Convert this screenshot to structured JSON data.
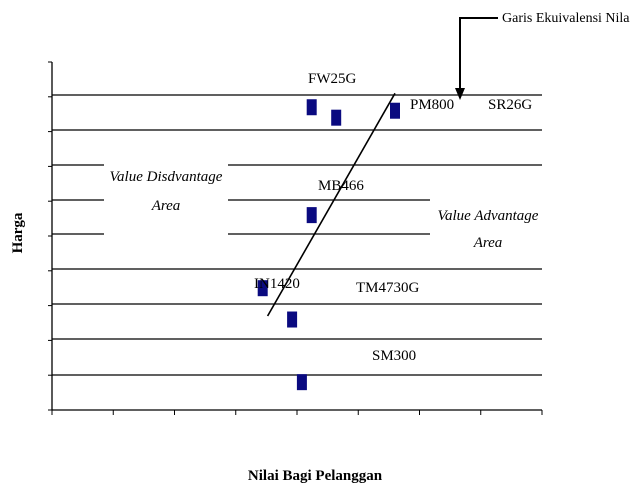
{
  "chart_data": {
    "type": "scatter",
    "title": "",
    "xlabel": "Nilai Bagi Pelanggan",
    "ylabel": "Harga",
    "xlim": [
      0,
      10
    ],
    "ylim": [
      0,
      10
    ],
    "points": [
      {
        "label": "FW25G",
        "x": 5.3,
        "y": 8.7
      },
      {
        "label": "PM800",
        "x": 5.8,
        "y": 8.4
      },
      {
        "label": "SR26G",
        "x": 7.0,
        "y": 8.6
      },
      {
        "label": "MB466",
        "x": 5.3,
        "y": 5.6
      },
      {
        "label": "IN1420",
        "x": 4.3,
        "y": 3.5
      },
      {
        "label": "TM4730G",
        "x": 4.9,
        "y": 2.6
      },
      {
        "label": "SM300",
        "x": 5.1,
        "y": 0.8
      }
    ],
    "equivalence_line": {
      "label": "Garis Ekuivalensi Nilai",
      "from": [
        4.4,
        2.7
      ],
      "to": [
        7.0,
        9.1
      ]
    },
    "annotations": {
      "left_area": [
        "Value Disdvantage",
        "Area"
      ],
      "right_area": [
        "Value Advantage",
        "Area"
      ]
    },
    "grid": true,
    "marker_color": "#0a0a80"
  }
}
